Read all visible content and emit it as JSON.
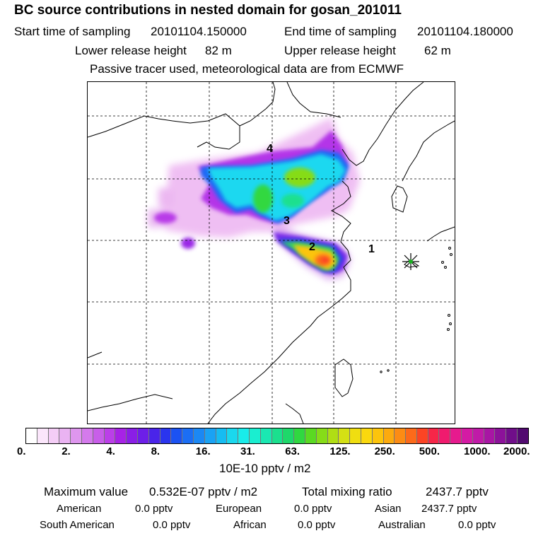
{
  "header": {
    "title": "BC  source contributions in nested domain for gosan_201011",
    "start_label": "Start time of sampling",
    "start_value": "20101104.150000",
    "end_label": "End time of sampling",
    "end_value": "20101104.180000",
    "lower_label": "Lower release height",
    "lower_value": "82 m",
    "upper_label": "Upper release height",
    "upper_value": "62 m",
    "note": "Passive tracer used, meteorological data are from ECMWF"
  },
  "map": {
    "region_labels": [
      "1",
      "2",
      "3",
      "4"
    ],
    "receptor_marker": "receptor-star-icon",
    "grid": "dashed"
  },
  "colorbar": {
    "ticks": [
      "0.",
      "2.",
      "4.",
      "8.",
      "16.",
      "31.",
      "63.",
      "125.",
      "250.",
      "500.",
      "1000.",
      "2000."
    ],
    "units": "10E-10 pptv / m2",
    "colors": [
      "#ffffff",
      "#fbe6fb",
      "#f4cdf6",
      "#eab3f2",
      "#de96ee",
      "#d47aec",
      "#c85ee9",
      "#bb3fe8",
      "#a722e6",
      "#8a1ee6",
      "#6d1fe8",
      "#4a24ea",
      "#2a35ee",
      "#1b52f2",
      "#1b6ef4",
      "#1b88f4",
      "#1aa2f4",
      "#16bcf2",
      "#1ad8ee",
      "#19ecea",
      "#1aeed0",
      "#1ae8b2",
      "#1ae08e",
      "#1ed86a",
      "#30d840",
      "#5ada22",
      "#86dc18",
      "#b0de14",
      "#d4e014",
      "#f0de10",
      "#fad80e",
      "#fcc40c",
      "#fcaa0e",
      "#fc8c14",
      "#fc6a1a",
      "#fc4424",
      "#f62648",
      "#f01b6e",
      "#e61a8e",
      "#d41aa4",
      "#c01aa8",
      "#a816a4",
      "#8c129a",
      "#700e8a",
      "#520a70"
    ]
  },
  "footer": {
    "max_label": "Maximum value",
    "max_value": "0.532E-07 pptv / m2",
    "total_label": "Total mixing ratio",
    "total_value": "2437.7 pptv",
    "american_label": "American",
    "american_value": "0.0 pptv",
    "european_label": "European",
    "european_value": "0.0 pptv",
    "asian_label": "Asian",
    "asian_value": "2437.7 pptv",
    "south_american_label": "South American",
    "south_american_value": "0.0 pptv",
    "african_label": "African",
    "african_value": "0.0 pptv",
    "australian_label": "Australian",
    "australian_value": "0.0 pptv"
  }
}
